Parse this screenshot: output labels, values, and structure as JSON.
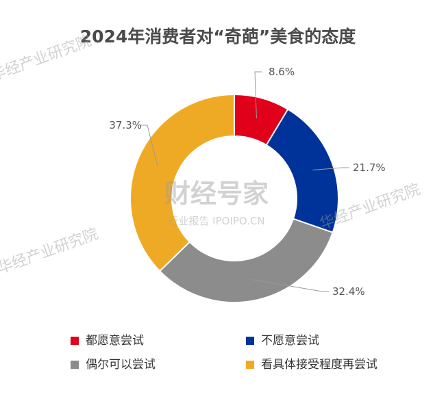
{
  "chart_data": {
    "type": "pie",
    "title": "2024年消费者对“奇葩”美食的态度",
    "categories": [
      "都愿意尝试",
      "不愿意尝试",
      "偶尔可以尝试",
      "看具体接受程度再尝试"
    ],
    "values": [
      8.6,
      21.7,
      32.4,
      37.3
    ],
    "value_labels": [
      "8.6%",
      "21.7%",
      "32.4%",
      "37.3%"
    ],
    "colors": [
      "#e0001a",
      "#003399",
      "#8c8c8c",
      "#efaa25"
    ],
    "donut": true,
    "legend_position": "bottom"
  },
  "watermark": {
    "brand": "华经产业研究院",
    "site_name": "财经号家",
    "site_sub": "行业报告 IPOIPO.CN"
  }
}
